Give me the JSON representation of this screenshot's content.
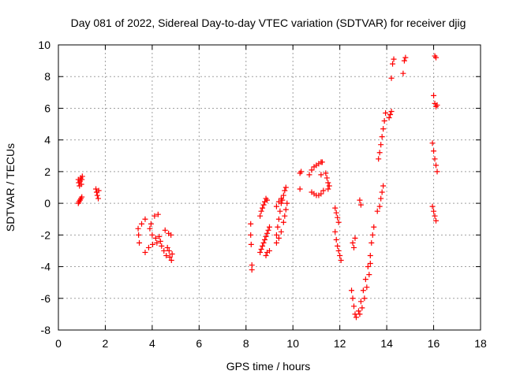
{
  "chart_data": {
    "type": "scatter",
    "title": "Day 081 of 2022, Sidereal Day-to-day VTEC variation (SDTVAR) for receiver djig",
    "xlabel": "GPS time / hours",
    "ylabel": "SDTVAR / TECUs",
    "xlim": [
      0,
      18
    ],
    "ylim": [
      -8,
      10
    ],
    "xticks": [
      "0",
      "2",
      "4",
      "6",
      "8",
      "10",
      "12",
      "14",
      "16",
      "18"
    ],
    "yticks": [
      "-8",
      "-6",
      "-4",
      "-2",
      "0",
      "2",
      "4",
      "6",
      "8",
      "10"
    ],
    "grid": true,
    "marker": "+",
    "colors": {
      "series": "#ff0000",
      "grid": "#a0a0a0",
      "axes": "#000000"
    },
    "series": [
      {
        "points": [
          [
            0.85,
            1.5
          ],
          [
            0.87,
            1.3
          ],
          [
            0.9,
            1.1
          ],
          [
            0.92,
            1.4
          ],
          [
            0.95,
            1.6
          ],
          [
            0.98,
            1.2
          ],
          [
            1.0,
            1.5
          ],
          [
            1.02,
            1.7
          ],
          [
            0.85,
            0.0
          ],
          [
            0.88,
            0.1
          ],
          [
            0.92,
            0.2
          ],
          [
            0.96,
            0.3
          ],
          [
            1.0,
            0.4
          ],
          [
            1.6,
            0.9
          ],
          [
            1.63,
            0.7
          ],
          [
            1.66,
            0.5
          ],
          [
            1.7,
            0.3
          ],
          [
            1.72,
            0.8
          ],
          [
            3.4,
            -1.6
          ],
          [
            3.42,
            -2.0
          ],
          [
            3.45,
            -2.5
          ],
          [
            3.55,
            -1.3
          ],
          [
            3.7,
            -1.0
          ],
          [
            3.7,
            -3.1
          ],
          [
            3.85,
            -2.8
          ],
          [
            3.9,
            -1.6
          ],
          [
            3.95,
            -1.3
          ],
          [
            4.0,
            -2.0
          ],
          [
            4.02,
            -2.6
          ],
          [
            4.1,
            -0.8
          ],
          [
            4.15,
            -2.2
          ],
          [
            4.2,
            -2.5
          ],
          [
            4.25,
            -0.7
          ],
          [
            4.3,
            -2.1
          ],
          [
            4.35,
            -2.4
          ],
          [
            4.4,
            -2.7
          ],
          [
            4.5,
            -3.0
          ],
          [
            4.55,
            -1.7
          ],
          [
            4.6,
            -3.3
          ],
          [
            4.65,
            -2.8
          ],
          [
            4.7,
            -1.9
          ],
          [
            4.72,
            -3.0
          ],
          [
            4.75,
            -3.4
          ],
          [
            4.8,
            -2.0
          ],
          [
            4.82,
            -3.6
          ],
          [
            4.85,
            -3.2
          ],
          [
            8.2,
            -1.3
          ],
          [
            8.2,
            -2.0
          ],
          [
            8.22,
            -2.6
          ],
          [
            8.25,
            -3.9
          ],
          [
            8.25,
            -4.2
          ],
          [
            8.6,
            -3.1
          ],
          [
            8.65,
            -2.9
          ],
          [
            8.7,
            -2.7
          ],
          [
            8.75,
            -2.5
          ],
          [
            8.8,
            -2.3
          ],
          [
            8.85,
            -2.1
          ],
          [
            8.9,
            -1.9
          ],
          [
            8.95,
            -1.7
          ],
          [
            9.0,
            -1.5
          ],
          [
            8.6,
            -0.8
          ],
          [
            8.65,
            -0.5
          ],
          [
            8.7,
            -0.3
          ],
          [
            8.75,
            -0.1
          ],
          [
            8.8,
            0.1
          ],
          [
            8.85,
            0.3
          ],
          [
            8.9,
            0.2
          ],
          [
            8.85,
            -3.3
          ],
          [
            8.9,
            -3.1
          ],
          [
            9.0,
            -3.0
          ],
          [
            9.3,
            -2.0
          ],
          [
            9.35,
            -1.5
          ],
          [
            9.4,
            -1.0
          ],
          [
            9.45,
            -0.5
          ],
          [
            9.5,
            0.0
          ],
          [
            9.55,
            0.2
          ],
          [
            9.6,
            0.5
          ],
          [
            9.65,
            0.8
          ],
          [
            9.7,
            1.0
          ],
          [
            9.3,
            -2.5
          ],
          [
            9.4,
            -2.2
          ],
          [
            9.5,
            -1.8
          ],
          [
            9.6,
            -1.2
          ],
          [
            9.65,
            -0.8
          ],
          [
            9.7,
            -0.4
          ],
          [
            9.75,
            0.0
          ],
          [
            9.3,
            -0.2
          ],
          [
            9.4,
            0.1
          ],
          [
            9.5,
            0.3
          ],
          [
            10.3,
            1.9
          ],
          [
            10.35,
            2.0
          ],
          [
            10.3,
            0.9
          ],
          [
            10.7,
            1.8
          ],
          [
            10.8,
            2.1
          ],
          [
            10.9,
            2.3
          ],
          [
            11.0,
            2.4
          ],
          [
            11.1,
            2.5
          ],
          [
            11.2,
            2.6
          ],
          [
            11.25,
            2.6
          ],
          [
            10.8,
            0.7
          ],
          [
            10.9,
            0.6
          ],
          [
            11.0,
            0.5
          ],
          [
            11.1,
            0.5
          ],
          [
            11.2,
            0.6
          ],
          [
            11.3,
            0.8
          ],
          [
            11.2,
            1.8
          ],
          [
            11.4,
            1.9
          ],
          [
            11.45,
            1.6
          ],
          [
            11.5,
            1.3
          ],
          [
            11.55,
            1.1
          ],
          [
            11.5,
            0.9
          ],
          [
            11.8,
            -0.3
          ],
          [
            11.85,
            -0.6
          ],
          [
            11.9,
            -0.9
          ],
          [
            11.95,
            -1.2
          ],
          [
            11.8,
            -1.8
          ],
          [
            11.85,
            -2.3
          ],
          [
            11.9,
            -2.7
          ],
          [
            11.95,
            -3.0
          ],
          [
            12.0,
            -3.3
          ],
          [
            12.05,
            -3.6
          ],
          [
            12.5,
            -5.5
          ],
          [
            12.55,
            -6.0
          ],
          [
            12.6,
            -6.5
          ],
          [
            12.65,
            -7.0
          ],
          [
            12.7,
            -7.2
          ],
          [
            12.55,
            -2.5
          ],
          [
            12.6,
            -2.8
          ],
          [
            12.65,
            -2.2
          ],
          [
            12.85,
            0.2
          ],
          [
            12.9,
            -0.1
          ],
          [
            12.8,
            -6.8
          ],
          [
            12.9,
            -6.2
          ],
          [
            13.0,
            -5.5
          ],
          [
            13.1,
            -4.8
          ],
          [
            13.2,
            -4.0
          ],
          [
            13.3,
            -3.3
          ],
          [
            13.35,
            -2.5
          ],
          [
            13.4,
            -2.0
          ],
          [
            13.45,
            -1.5
          ],
          [
            12.85,
            -7.0
          ],
          [
            12.95,
            -6.6
          ],
          [
            13.05,
            -6.0
          ],
          [
            13.15,
            -5.3
          ],
          [
            13.25,
            -4.5
          ],
          [
            13.3,
            -3.8
          ],
          [
            13.6,
            -0.5
          ],
          [
            13.7,
            -0.2
          ],
          [
            13.75,
            0.3
          ],
          [
            13.8,
            0.7
          ],
          [
            13.85,
            1.1
          ],
          [
            13.65,
            2.8
          ],
          [
            13.7,
            3.2
          ],
          [
            13.75,
            3.7
          ],
          [
            13.8,
            4.2
          ],
          [
            13.85,
            4.7
          ],
          [
            13.9,
            5.2
          ],
          [
            13.95,
            5.7
          ],
          [
            14.1,
            5.4
          ],
          [
            14.15,
            5.6
          ],
          [
            14.2,
            5.8
          ],
          [
            14.2,
            7.9
          ],
          [
            14.25,
            8.8
          ],
          [
            14.3,
            9.1
          ],
          [
            14.7,
            8.2
          ],
          [
            14.75,
            9.0
          ],
          [
            14.8,
            9.2
          ],
          [
            15.95,
            -0.2
          ],
          [
            16.0,
            -0.5
          ],
          [
            16.05,
            -0.8
          ],
          [
            16.1,
            -1.1
          ],
          [
            15.95,
            3.8
          ],
          [
            16.0,
            3.3
          ],
          [
            16.05,
            2.8
          ],
          [
            16.1,
            2.4
          ],
          [
            16.15,
            2.0
          ],
          [
            16.0,
            6.8
          ],
          [
            16.05,
            6.3
          ],
          [
            16.1,
            6.1
          ],
          [
            16.15,
            6.2
          ],
          [
            16.05,
            9.3
          ],
          [
            16.1,
            9.2
          ]
        ]
      }
    ]
  }
}
